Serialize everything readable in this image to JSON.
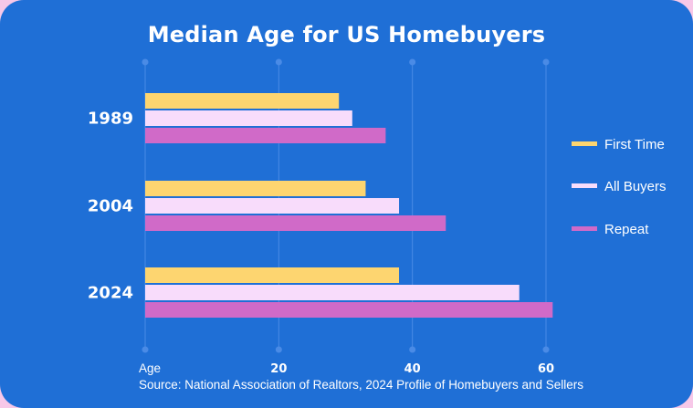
{
  "colors": {
    "background": "#1f6fd6",
    "outer": "#f7c8e8",
    "grid": "#4a8be6",
    "text": "#ffffff"
  },
  "source": "Source: National Association of Realtors, 2024 Profile of Homebuyers and Sellers",
  "chart_data": {
    "type": "bar",
    "orientation": "horizontal",
    "title": "Median Age for US Homebuyers",
    "xlabel": "Age",
    "ylabel": "",
    "categories": [
      "1989",
      "2004",
      "2024"
    ],
    "series": [
      {
        "name": "First Time",
        "color": "#fdd570",
        "values": [
          29,
          33,
          38
        ]
      },
      {
        "name": "All Buyers",
        "color": "#f8dcfb",
        "values": [
          31,
          38,
          56
        ]
      },
      {
        "name": "Repeat",
        "color": "#d06ac8",
        "values": [
          36,
          45,
          61
        ]
      }
    ],
    "xlim": [
      0,
      60
    ],
    "xticks": [
      20,
      40,
      60
    ],
    "grid": true,
    "legend": "right"
  }
}
